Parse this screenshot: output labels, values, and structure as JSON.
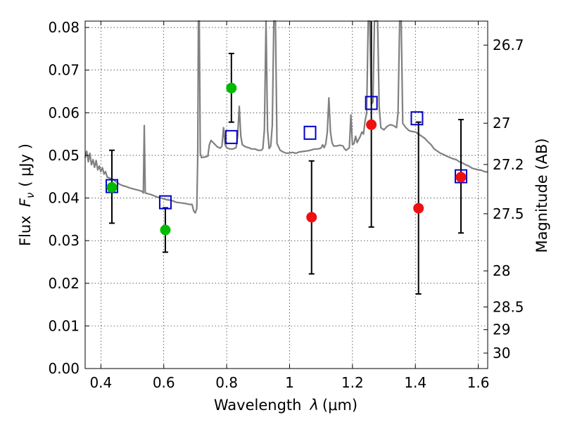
{
  "chart_data": {
    "type": "scatter",
    "xlabel_text": "Wavelength",
    "xlabel_symbol": "λ",
    "xlabel_unit": "(μm)",
    "ylabel_text": "Flux",
    "ylabel_symbol": "F",
    "ylabel_sub": "ν",
    "ylabel_unit": "( μJy )",
    "y2label": "Magnitude (AB)",
    "xlim": [
      0.35,
      1.63
    ],
    "ylim": [
      0.0,
      0.0815
    ],
    "x_ticks": [
      0.4,
      0.6,
      0.8,
      1.0,
      1.2,
      1.4,
      1.6
    ],
    "x_tick_labels": [
      "0.4",
      "0.6",
      "0.8",
      "1",
      "1.2",
      "1.4",
      "1.6"
    ],
    "y_ticks": [
      0.0,
      0.01,
      0.02,
      0.03,
      0.04,
      0.05,
      0.06,
      0.07,
      0.08
    ],
    "y_tick_labels": [
      "0.00",
      "0.01",
      "0.02",
      "0.03",
      "0.04",
      "0.05",
      "0.06",
      "0.07",
      "0.08"
    ],
    "y2_ticks": [
      26.7,
      27,
      27.2,
      27.5,
      28,
      28.5,
      29,
      30
    ],
    "y2_tick_labels": [
      "26.7",
      "27",
      "27.2",
      "27.5",
      "28",
      "28.5",
      "29",
      "30"
    ],
    "grid": true,
    "model_spectrum": {
      "color": "#808080",
      "points": [
        [
          0.35,
          0.0495
        ],
        [
          0.355,
          0.051
        ],
        [
          0.36,
          0.0485
        ],
        [
          0.365,
          0.0505
        ],
        [
          0.37,
          0.0478
        ],
        [
          0.375,
          0.049
        ],
        [
          0.38,
          0.0472
        ],
        [
          0.385,
          0.0488
        ],
        [
          0.39,
          0.0466
        ],
        [
          0.395,
          0.0475
        ],
        [
          0.4,
          0.0462
        ],
        [
          0.405,
          0.0471
        ],
        [
          0.41,
          0.0456
        ],
        [
          0.415,
          0.0462
        ],
        [
          0.42,
          0.0449
        ],
        [
          0.43,
          0.0446
        ],
        [
          0.44,
          0.0443
        ],
        [
          0.45,
          0.0437
        ],
        [
          0.46,
          0.0432
        ],
        [
          0.47,
          0.0429
        ],
        [
          0.48,
          0.0427
        ],
        [
          0.49,
          0.0424
        ],
        [
          0.5,
          0.0422
        ],
        [
          0.51,
          0.042
        ],
        [
          0.52,
          0.0418
        ],
        [
          0.53,
          0.0416
        ],
        [
          0.535,
          0.0412
        ],
        [
          0.538,
          0.057
        ],
        [
          0.541,
          0.0412
        ],
        [
          0.55,
          0.041
        ],
        [
          0.56,
          0.0408
        ],
        [
          0.57,
          0.0405
        ],
        [
          0.58,
          0.0402
        ],
        [
          0.59,
          0.04
        ],
        [
          0.6,
          0.0398
        ],
        [
          0.61,
          0.0396
        ],
        [
          0.62,
          0.0395
        ],
        [
          0.63,
          0.0393
        ],
        [
          0.64,
          0.039
        ],
        [
          0.65,
          0.0389
        ],
        [
          0.66,
          0.0388
        ],
        [
          0.67,
          0.0387
        ],
        [
          0.68,
          0.0385
        ],
        [
          0.69,
          0.0385
        ],
        [
          0.695,
          0.037
        ],
        [
          0.7,
          0.0365
        ],
        [
          0.705,
          0.0375
        ],
        [
          0.708,
          0.05
        ],
        [
          0.71,
          0.0815
        ],
        [
          0.713,
          0.0815
        ],
        [
          0.716,
          0.0505
        ],
        [
          0.72,
          0.0495
        ],
        [
          0.73,
          0.0496
        ],
        [
          0.74,
          0.0498
        ],
        [
          0.745,
          0.0525
        ],
        [
          0.75,
          0.0535
        ],
        [
          0.76,
          0.0528
        ],
        [
          0.77,
          0.052
        ],
        [
          0.78,
          0.0517
        ],
        [
          0.785,
          0.0522
        ],
        [
          0.79,
          0.0565
        ],
        [
          0.795,
          0.0525
        ],
        [
          0.8,
          0.0518
        ],
        [
          0.81,
          0.0515
        ],
        [
          0.82,
          0.0515
        ],
        [
          0.83,
          0.0518
        ],
        [
          0.835,
          0.0545
        ],
        [
          0.84,
          0.0615
        ],
        [
          0.845,
          0.0545
        ],
        [
          0.85,
          0.0525
        ],
        [
          0.86,
          0.052
        ],
        [
          0.87,
          0.0518
        ],
        [
          0.88,
          0.0515
        ],
        [
          0.89,
          0.0515
        ],
        [
          0.9,
          0.0512
        ],
        [
          0.91,
          0.0512
        ],
        [
          0.915,
          0.0516
        ],
        [
          0.92,
          0.056
        ],
        [
          0.925,
          0.0815
        ],
        [
          0.93,
          0.056
        ],
        [
          0.935,
          0.0516
        ],
        [
          0.94,
          0.0522
        ],
        [
          0.945,
          0.057
        ],
        [
          0.95,
          0.0815
        ],
        [
          0.955,
          0.0815
        ],
        [
          0.96,
          0.0528
        ],
        [
          0.965,
          0.052
        ],
        [
          0.97,
          0.0512
        ],
        [
          0.98,
          0.0508
        ],
        [
          0.99,
          0.0505
        ],
        [
          1.0,
          0.0506
        ],
        [
          1.01,
          0.0507
        ],
        [
          1.02,
          0.0505
        ],
        [
          1.03,
          0.0508
        ],
        [
          1.04,
          0.0509
        ],
        [
          1.05,
          0.051
        ],
        [
          1.06,
          0.0511
        ],
        [
          1.07,
          0.0513
        ],
        [
          1.08,
          0.0515
        ],
        [
          1.09,
          0.0515
        ],
        [
          1.1,
          0.0517
        ],
        [
          1.105,
          0.0525
        ],
        [
          1.11,
          0.0518
        ],
        [
          1.115,
          0.0527
        ],
        [
          1.12,
          0.0555
        ],
        [
          1.125,
          0.0635
        ],
        [
          1.13,
          0.0555
        ],
        [
          1.135,
          0.053
        ],
        [
          1.14,
          0.0522
        ],
        [
          1.15,
          0.0522
        ],
        [
          1.16,
          0.0524
        ],
        [
          1.17,
          0.0522
        ],
        [
          1.175,
          0.0515
        ],
        [
          1.18,
          0.0512
        ],
        [
          1.19,
          0.0518
        ],
        [
          1.195,
          0.0595
        ],
        [
          1.2,
          0.0525
        ],
        [
          1.205,
          0.0528
        ],
        [
          1.21,
          0.0545
        ],
        [
          1.215,
          0.053
        ],
        [
          1.22,
          0.0538
        ],
        [
          1.225,
          0.0545
        ],
        [
          1.23,
          0.0555
        ],
        [
          1.235,
          0.055
        ],
        [
          1.24,
          0.058
        ],
        [
          1.245,
          0.06
        ],
        [
          1.25,
          0.0815
        ],
        [
          1.255,
          0.0815
        ],
        [
          1.26,
          0.062
        ],
        [
          1.265,
          0.0625
        ],
        [
          1.27,
          0.0815
        ],
        [
          1.28,
          0.0815
        ],
        [
          1.285,
          0.0615
        ],
        [
          1.29,
          0.0565
        ],
        [
          1.3,
          0.056
        ],
        [
          1.31,
          0.0568
        ],
        [
          1.32,
          0.0572
        ],
        [
          1.33,
          0.057
        ],
        [
          1.34,
          0.0565
        ],
        [
          1.345,
          0.06
        ],
        [
          1.35,
          0.0815
        ],
        [
          1.355,
          0.0815
        ],
        [
          1.36,
          0.0575
        ],
        [
          1.37,
          0.0565
        ],
        [
          1.38,
          0.0558
        ],
        [
          1.39,
          0.0556
        ],
        [
          1.4,
          0.0555
        ],
        [
          1.41,
          0.055
        ],
        [
          1.42,
          0.0545
        ],
        [
          1.43,
          0.054
        ],
        [
          1.44,
          0.0532
        ],
        [
          1.45,
          0.0525
        ],
        [
          1.46,
          0.0515
        ],
        [
          1.47,
          0.051
        ],
        [
          1.48,
          0.0505
        ],
        [
          1.49,
          0.0502
        ],
        [
          1.5,
          0.0498
        ],
        [
          1.51,
          0.0495
        ],
        [
          1.52,
          0.0492
        ],
        [
          1.53,
          0.049
        ],
        [
          1.54,
          0.0485
        ],
        [
          1.55,
          0.0482
        ],
        [
          1.56,
          0.0478
        ],
        [
          1.57,
          0.0475
        ],
        [
          1.58,
          0.047
        ],
        [
          1.59,
          0.0468
        ],
        [
          1.6,
          0.0466
        ],
        [
          1.61,
          0.0465
        ],
        [
          1.62,
          0.0462
        ],
        [
          1.63,
          0.0461
        ]
      ]
    },
    "measurements": {
      "series_green": {
        "color": "#00bb00",
        "points": [
          {
            "x": 0.435,
            "y": 0.0425,
            "err_lo": 0.0341,
            "err_hi": 0.0512
          },
          {
            "x": 0.605,
            "y": 0.0325,
            "err_lo": 0.0273,
            "err_hi": 0.0377
          },
          {
            "x": 0.815,
            "y": 0.0658,
            "err_lo": 0.0578,
            "err_hi": 0.0739
          }
        ]
      },
      "series_red": {
        "color": "#ee1111",
        "points": [
          {
            "x": 1.07,
            "y": 0.0355,
            "err_lo": 0.0222,
            "err_hi": 0.0487
          },
          {
            "x": 1.26,
            "y": 0.0572,
            "err_lo": 0.0332,
            "err_hi": 0.0815
          },
          {
            "x": 1.41,
            "y": 0.0376,
            "err_lo": 0.0175,
            "err_hi": 0.0578
          },
          {
            "x": 1.545,
            "y": 0.0449,
            "err_lo": 0.0318,
            "err_hi": 0.0584
          }
        ]
      },
      "series_model_bands": {
        "color": "#0000cc",
        "points": [
          {
            "x": 0.435,
            "y": 0.0428
          },
          {
            "x": 0.605,
            "y": 0.039
          },
          {
            "x": 0.815,
            "y": 0.0543
          },
          {
            "x": 1.065,
            "y": 0.0553
          },
          {
            "x": 1.26,
            "y": 0.0623
          },
          {
            "x": 1.405,
            "y": 0.0587
          },
          {
            "x": 1.545,
            "y": 0.0451
          }
        ]
      }
    }
  }
}
